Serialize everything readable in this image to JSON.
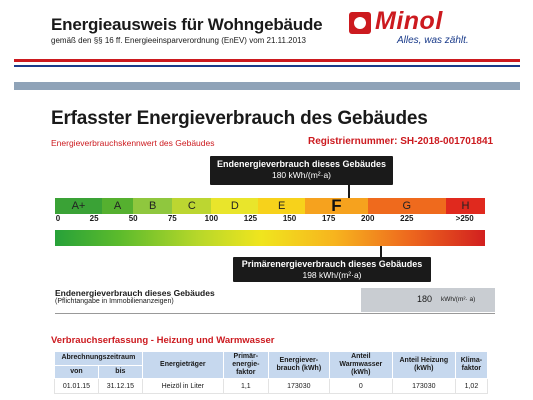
{
  "header": {
    "title": "Energieausweis für Wohngebäude",
    "subtitle": "gemäß den §§ 16 ff. Energieeinsparverordnung (EnEV) vom 21.11.2013"
  },
  "logo": {
    "name": "Minol",
    "tagline": "Alles, was zählt."
  },
  "section": {
    "title": "Erfasster Energieverbrauch des Gebäudes",
    "kennwert_label": "Energieverbrauchskennwert des Gebäudes",
    "registration": "Registriernummer:  SH-2018-001701841"
  },
  "scale": {
    "classes": [
      "A+",
      "A",
      "B",
      "C",
      "D",
      "E",
      "F",
      "G",
      "H"
    ],
    "class_colors": [
      "#3aa236",
      "#55b02f",
      "#8fc73e",
      "#bcd631",
      "#e9e52b",
      "#f7d21b",
      "#f6a21e",
      "#ef6a1d",
      "#e0291e"
    ],
    "highlighted_class": "F",
    "ticks": [
      "0",
      "25",
      "50",
      "75",
      "100",
      "125",
      "150",
      "175",
      "200",
      "225",
      ">250"
    ],
    "end_energy": {
      "label": "Endenergieverbrauch dieses Gebäudes",
      "value_text": "180 kWh/(m²·a)",
      "value": 180
    },
    "primary_energy": {
      "label": "Primärenergieverbrauch dieses Gebäudes",
      "value_text": "198 kWh/(m²·a)",
      "value": 198
    }
  },
  "end_energy_box": {
    "label": "Endenergieverbrauch dieses Gebäudes",
    "note": "(Pflichtangabe in Immobilienanzeigen)",
    "value": "180",
    "unit": "kWh/(m²· a)"
  },
  "consumption": {
    "title": "Verbrauchserfassung - Heizung und Warmwasser",
    "headers": {
      "period": "Abrechnungszeitraum",
      "from": "von",
      "to": "bis",
      "carrier": "Energieträger",
      "primary_factor": "Primär-energie-faktor",
      "consumption": "Energiever-brauch (kWh)",
      "warm_water": "Anteil Warmwasser (kWh)",
      "heating": "Anteil Heizung (kWh)",
      "climate": "Klima-faktor"
    },
    "rows": [
      {
        "from": "01.01.15",
        "to": "31.12.15",
        "carrier": "Heizöl in Liter",
        "primary_factor": "1,1",
        "consumption": "173030",
        "warm_water": "0",
        "heating": "173030",
        "climate": "1,02"
      }
    ]
  }
}
